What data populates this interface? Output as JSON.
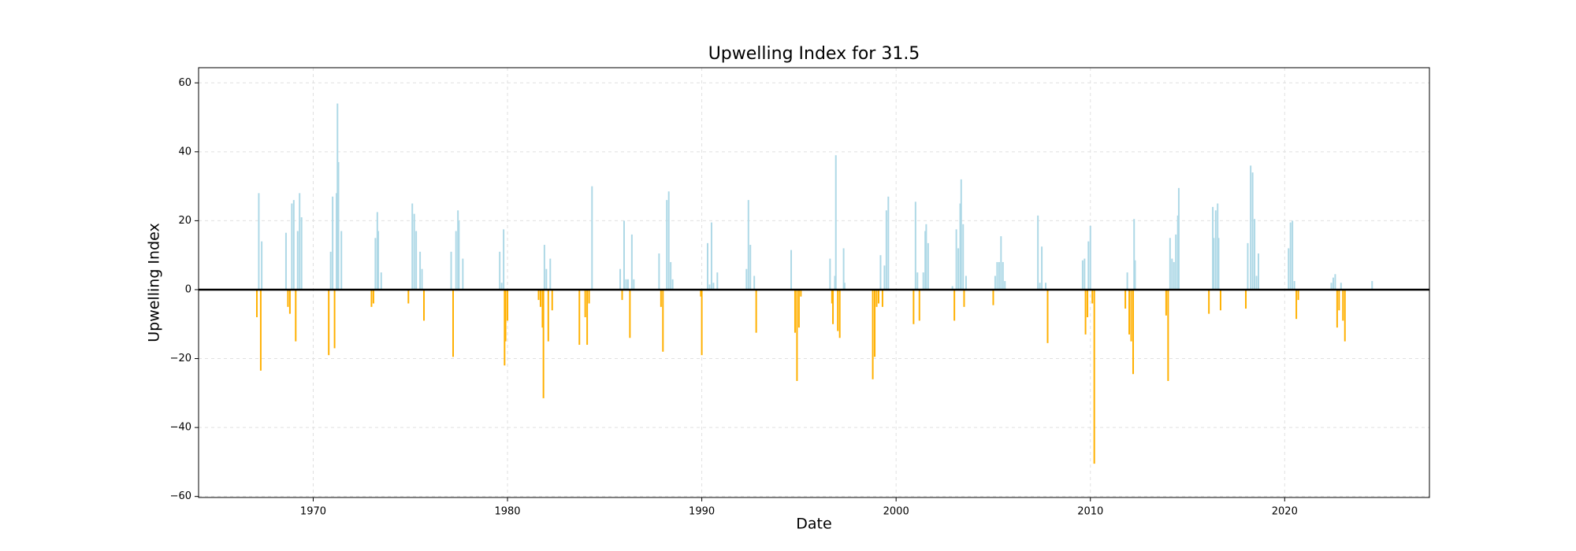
{
  "chart_data": {
    "type": "bar",
    "title": "Upwelling Index for 31.5",
    "x_label": "Date",
    "y_label": "Upwelling Index",
    "x": [
      1967.1,
      1967.2,
      1967.3,
      1967.35,
      1968.6,
      1968.7,
      1968.8,
      1968.9,
      1969.0,
      1969.1,
      1969.2,
      1969.3,
      1969.4,
      1970.8,
      1970.9,
      1971.0,
      1971.1,
      1971.2,
      1971.25,
      1971.3,
      1971.45,
      1973.0,
      1973.1,
      1973.2,
      1973.3,
      1973.35,
      1973.5,
      1974.9,
      1975.1,
      1975.2,
      1975.3,
      1975.5,
      1975.6,
      1975.7,
      1977.1,
      1977.2,
      1977.35,
      1977.45,
      1977.5,
      1977.7,
      1979.6,
      1979.7,
      1979.8,
      1979.85,
      1979.9,
      1980.0,
      1981.6,
      1981.7,
      1981.8,
      1981.85,
      1981.9,
      1982.0,
      1982.1,
      1982.2,
      1982.3,
      1983.7,
      1984.0,
      1984.1,
      1984.2,
      1984.35,
      1985.8,
      1985.9,
      1986.0,
      1986.1,
      1986.2,
      1986.3,
      1986.4,
      1986.5,
      1987.8,
      1987.9,
      1988.0,
      1988.2,
      1988.3,
      1988.4,
      1988.5,
      1989.95,
      1990.0,
      1990.3,
      1990.4,
      1990.5,
      1990.6,
      1990.8,
      1992.3,
      1992.4,
      1992.5,
      1992.7,
      1992.8,
      1994.6,
      1994.8,
      1994.9,
      1995.0,
      1995.1,
      1996.6,
      1996.7,
      1996.75,
      1996.85,
      1996.9,
      1997.0,
      1997.1,
      1997.3,
      1997.35,
      1998.8,
      1998.9,
      1999.0,
      1999.1,
      1999.2,
      1999.3,
      1999.4,
      1999.5,
      1999.6,
      2000.9,
      2001.0,
      2001.1,
      2001.2,
      2001.4,
      2001.5,
      2001.55,
      2001.65,
      2002.9,
      2003.0,
      2003.1,
      2003.2,
      2003.3,
      2003.35,
      2003.45,
      2003.5,
      2003.6,
      2005.0,
      2005.1,
      2005.2,
      2005.3,
      2005.4,
      2005.5,
      2005.6,
      2007.3,
      2007.4,
      2007.5,
      2007.7,
      2007.8,
      2009.6,
      2009.7,
      2009.75,
      2009.85,
      2009.9,
      2010.0,
      2010.1,
      2010.2,
      2011.8,
      2011.9,
      2012.0,
      2012.1,
      2012.2,
      2012.25,
      2012.3,
      2013.9,
      2014.0,
      2014.1,
      2014.2,
      2014.3,
      2014.4,
      2014.5,
      2014.55,
      2016.1,
      2016.3,
      2016.35,
      2016.45,
      2016.55,
      2016.6,
      2016.7,
      2018.0,
      2018.1,
      2018.25,
      2018.35,
      2018.45,
      2018.55,
      2018.65,
      2020.2,
      2020.3,
      2020.4,
      2020.5,
      2020.6,
      2020.7,
      2022.4,
      2022.5,
      2022.6,
      2022.7,
      2022.8,
      2022.9,
      2023.0,
      2023.1,
      2024.5
    ],
    "values": [
      -8,
      28,
      -23.5,
      14,
      16.5,
      -5,
      -7,
      25,
      26,
      -15,
      17,
      28,
      21,
      -19,
      11,
      27,
      -17,
      28,
      54,
      37,
      17,
      -5,
      -4,
      15,
      22.5,
      17,
      5,
      -4,
      25,
      22,
      17,
      11,
      6,
      -9,
      11,
      -19.5,
      17,
      23,
      20,
      9,
      11,
      2,
      17.5,
      -22,
      -15,
      -9,
      -3,
      -5,
      -11,
      -31.5,
      13,
      6,
      -15,
      9,
      -6,
      -16,
      -8,
      -16,
      -4,
      30,
      6,
      -3,
      20,
      3,
      3,
      -14,
      16,
      3,
      10.5,
      -5,
      -18,
      26,
      28.5,
      8,
      3,
      -2,
      -19,
      13.5,
      1.5,
      19.5,
      2,
      5,
      6,
      26,
      13,
      4,
      -12.5,
      11.5,
      -12.5,
      -26.5,
      -11,
      -2,
      9,
      -4,
      -10,
      4,
      39,
      -12,
      -14,
      12,
      2,
      -26,
      -19.5,
      -5,
      -4,
      10,
      -5,
      7,
      23,
      27,
      -10,
      25.5,
      5,
      -9,
      5,
      17,
      19,
      13.5,
      1,
      -9,
      17.5,
      12,
      25,
      32,
      19,
      -5,
      4,
      -4.5,
      4,
      8,
      8,
      15.5,
      8,
      2.5,
      21.5,
      2,
      12.5,
      2,
      -15.5,
      8.5,
      9,
      -13,
      -8,
      14,
      18.5,
      -4,
      -50.5,
      -5.5,
      5,
      -13,
      -15,
      -24.5,
      20.5,
      8.5,
      -7.5,
      -26.5,
      15,
      9,
      8,
      16,
      21.5,
      29.5,
      -7,
      24,
      15,
      23,
      25,
      15,
      -6,
      -5.5,
      13.5,
      36,
      34,
      20.5,
      4,
      10.5,
      12,
      19.5,
      20,
      2.5,
      -8.5,
      -3,
      2,
      3.5,
      4.5,
      -11,
      -6,
      2,
      -9,
      -15,
      2.5
    ],
    "colors": {
      "positive": "#add8e6",
      "negative": "#ffb000"
    },
    "zero_line_color": "#000000",
    "xlim": [
      1964.1,
      2027.45
    ],
    "ylim": [
      -60.3,
      64.4
    ],
    "xticks": [
      1970,
      1980,
      1990,
      2000,
      2010,
      2020
    ],
    "yticks": [
      {
        "value": -60,
        "label": "−60"
      },
      {
        "value": -40,
        "label": "−40"
      },
      {
        "value": -20,
        "label": "−20"
      },
      0,
      20,
      40,
      60
    ],
    "grid": true
  }
}
